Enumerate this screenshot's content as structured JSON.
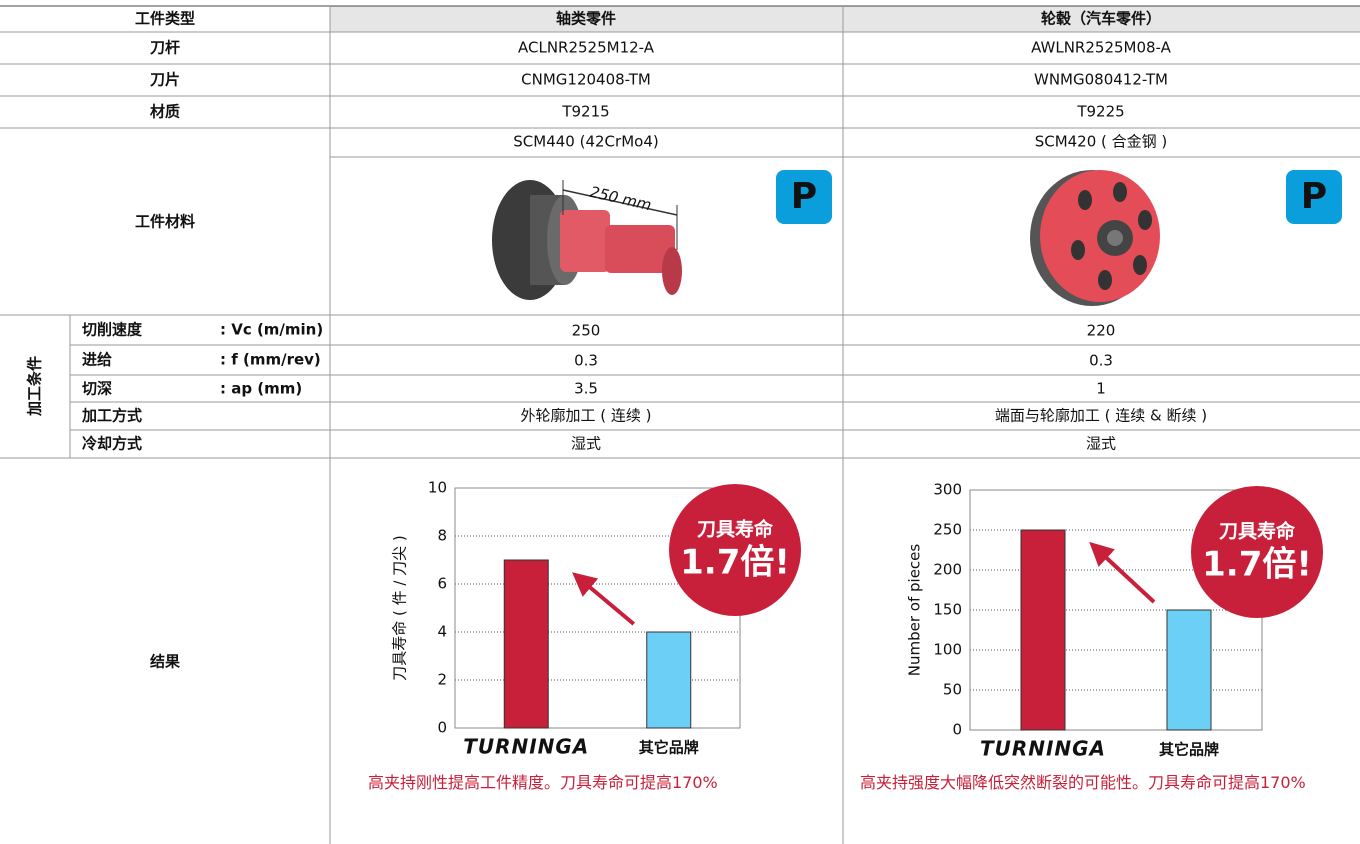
{
  "header": {
    "label": "工件类型",
    "columns": [
      "轴类零件",
      "轮毂（汽车零件）"
    ]
  },
  "rows": [
    {
      "label": "刀杆",
      "values": [
        "ACLNR2525M12-A",
        "AWLNR2525M08-A"
      ]
    },
    {
      "label": "刀片",
      "values": [
        "CNMG120408-TM",
        "WNMG080412-TM"
      ]
    },
    {
      "label": "材质",
      "values": [
        "T9215",
        "T9225"
      ]
    }
  ],
  "work_material": {
    "label": "工件材料",
    "values": [
      "SCM440 (42CrMo4)",
      "SCM420 ( 合金钢 )"
    ],
    "dimension": "250 mm",
    "badge": "P"
  },
  "conditions": {
    "group": "加工条件",
    "rows": [
      {
        "label": "切削速度",
        "unit": ": Vc (m/min)",
        "values": [
          250,
          220
        ]
      },
      {
        "label": "进给",
        "unit": ": f (mm/rev)",
        "values": [
          0.3,
          0.3
        ]
      },
      {
        "label": "切深",
        "unit": ": ap (mm)",
        "values": [
          3.5,
          1
        ]
      },
      {
        "label": "加工方式",
        "values": [
          "外轮廓加工 ( 连续 )",
          "端面与轮廓加工 ( 连续 & 断续 )"
        ]
      },
      {
        "label": "冷却方式",
        "values": [
          "湿式",
          "湿式"
        ]
      }
    ]
  },
  "results": {
    "label": "结果",
    "captions": [
      "高夹持刚性提高工件精度。刀具寿命可提高170%",
      "高夹持强度大幅降低突然断裂的可能性。刀具寿命可提高170%"
    ]
  },
  "chart_data": [
    {
      "type": "bar",
      "ylabel": "刀具寿命 ( 件 / 刀尖 )",
      "categories": [
        "TURNINGA",
        "其它品牌"
      ],
      "values": [
        7,
        4
      ],
      "colors": [
        "#c8203a",
        "#6ccff6"
      ],
      "ylim": [
        0,
        10
      ],
      "yticks": [
        0,
        2,
        4,
        6,
        8,
        10
      ],
      "grid": true,
      "annotations": [
        "刀具寿命",
        "1.7倍!"
      ]
    },
    {
      "type": "bar",
      "ylabel": "Number of pieces",
      "categories": [
        "TURNINGA",
        "其它品牌"
      ],
      "values": [
        250,
        150
      ],
      "colors": [
        "#c8203a",
        "#6ccff6"
      ],
      "ylim": [
        0,
        300
      ],
      "yticks": [
        0,
        50,
        100,
        150,
        200,
        250,
        300
      ],
      "grid": true,
      "annotations": [
        "刀具寿命",
        "1.7倍!"
      ]
    }
  ]
}
